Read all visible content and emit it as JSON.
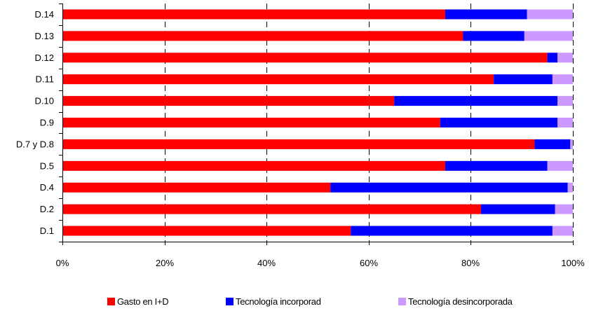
{
  "chart_data": {
    "type": "bar",
    "orientation": "horizontal",
    "stacked": true,
    "percent": true,
    "categories": [
      "D.14",
      "D.13",
      "D.12",
      "D.11",
      "D.10",
      "D.9",
      "D.7 y D.8",
      "D.5",
      "D.4",
      "D.2",
      "D.1"
    ],
    "series": [
      {
        "name": "Gasto en I+D",
        "color": "#ff0000",
        "values": [
          75,
          78.5,
          95,
          84.5,
          65,
          74,
          92.5,
          75,
          52.5,
          82,
          56.5
        ]
      },
      {
        "name": "Tecnología incorporad",
        "color": "#0000ff",
        "values": [
          16,
          12,
          2,
          11.5,
          32,
          23,
          7,
          20,
          46.5,
          14.5,
          39.5
        ]
      },
      {
        "name": "Tecnología desincorporada",
        "color": "#cc99ff",
        "values": [
          9,
          9.5,
          3,
          4,
          3,
          3,
          0.5,
          5,
          1,
          3.5,
          4
        ]
      }
    ],
    "xlim": [
      0,
      100
    ],
    "xticks": [
      "0%",
      "20%",
      "40%",
      "60%",
      "80%",
      "100%"
    ],
    "title": "",
    "xlabel": "",
    "ylabel": "",
    "grid": "vertical dashed",
    "legend": "bottom"
  }
}
